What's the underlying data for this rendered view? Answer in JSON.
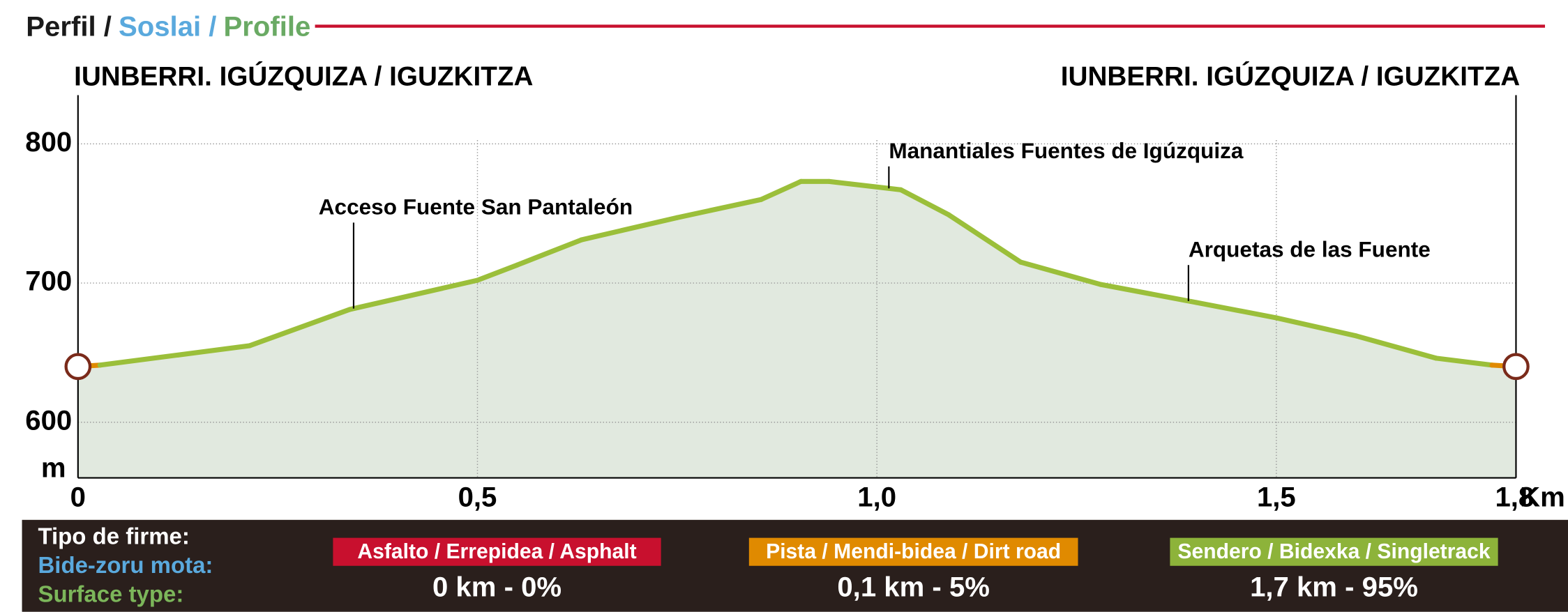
{
  "header": {
    "title_parts": [
      {
        "text": "Perfil /",
        "color": "#1a1a1a"
      },
      {
        "text": "Soslai /",
        "color": "#5aa9dd"
      },
      {
        "text": "Profile",
        "color": "#6aaa64"
      }
    ],
    "rule_color": "#c8102e"
  },
  "chart_data": {
    "type": "elevation",
    "start_label": "IUNBERRI. IGÚZQUIZA / IGUZKITZA",
    "end_label": "IUNBERRI. IGÚZQUIZA / IGUZKITZA",
    "x": [
      0,
      0.0275,
      0.215,
      0.34,
      0.5,
      0.55,
      0.63,
      0.75,
      0.855,
      0.905,
      0.94,
      1.03,
      1.09,
      1.18,
      1.28,
      1.4,
      1.5,
      1.6,
      1.7,
      1.77,
      1.8
    ],
    "values": [
      640,
      641,
      655,
      681,
      702,
      713,
      731,
      747,
      760,
      773,
      773,
      767,
      749,
      715,
      699,
      686,
      675,
      662,
      646,
      641,
      640
    ],
    "segment_colors": [
      "#e08a00",
      "#9bbf3a",
      "#9bbf3a",
      "#9bbf3a",
      "#9bbf3a",
      "#9bbf3a",
      "#9bbf3a",
      "#9bbf3a",
      "#9bbf3a",
      "#9bbf3a",
      "#9bbf3a",
      "#9bbf3a",
      "#9bbf3a",
      "#9bbf3a",
      "#9bbf3a",
      "#9bbf3a",
      "#9bbf3a",
      "#9bbf3a",
      "#9bbf3a",
      "#e08a00"
    ],
    "fill_color": "#e1e9df",
    "xlim": [
      0,
      1.8
    ],
    "ylim": [
      560,
      835
    ],
    "xticks": [
      0,
      {
        "value": 0.5,
        "label": "0,5"
      },
      {
        "value": 1,
        "label": "1,0"
      },
      {
        "value": 1.5,
        "label": "1,5"
      },
      {
        "value": 1.8,
        "label": "1,8"
      }
    ],
    "yticks": [
      600,
      700,
      800
    ],
    "x_unit": "Km",
    "y_unit": "m",
    "grid": true,
    "annotations": [
      {
        "text": "Acceso Fuente San Pantaleón",
        "x": 0.345
      },
      {
        "text": "Manantiales Fuentes de Igúzquiza",
        "x": 1.015
      },
      {
        "text": "Arquetas de las Fuente",
        "x": 1.39
      }
    ]
  },
  "legend": {
    "heading": [
      "Tipo de firme:",
      "Bide-zoru mota:",
      "Surface type:"
    ],
    "heading_colors": [
      "#ffffff",
      "#5aa9dd",
      "#7cb65a"
    ],
    "items": [
      {
        "label": "Asfalto / Errepidea / Asphalt",
        "color": "#c8102e",
        "value": "0 km - 0%"
      },
      {
        "label": "Pista / Mendi-bidea / Dirt road",
        "color": "#e08a00",
        "value": "0,1 km - 5%"
      },
      {
        "label": "Sendero / Bidexka / Singletrack",
        "color": "#8db33a",
        "value": "1,7 km - 95%"
      }
    ]
  }
}
